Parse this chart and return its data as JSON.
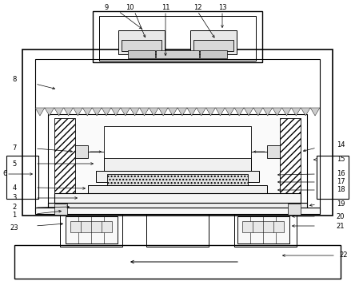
{
  "background_color": "#ffffff",
  "line_color": "#000000",
  "figsize": [
    4.44,
    3.57
  ],
  "dpi": 100
}
